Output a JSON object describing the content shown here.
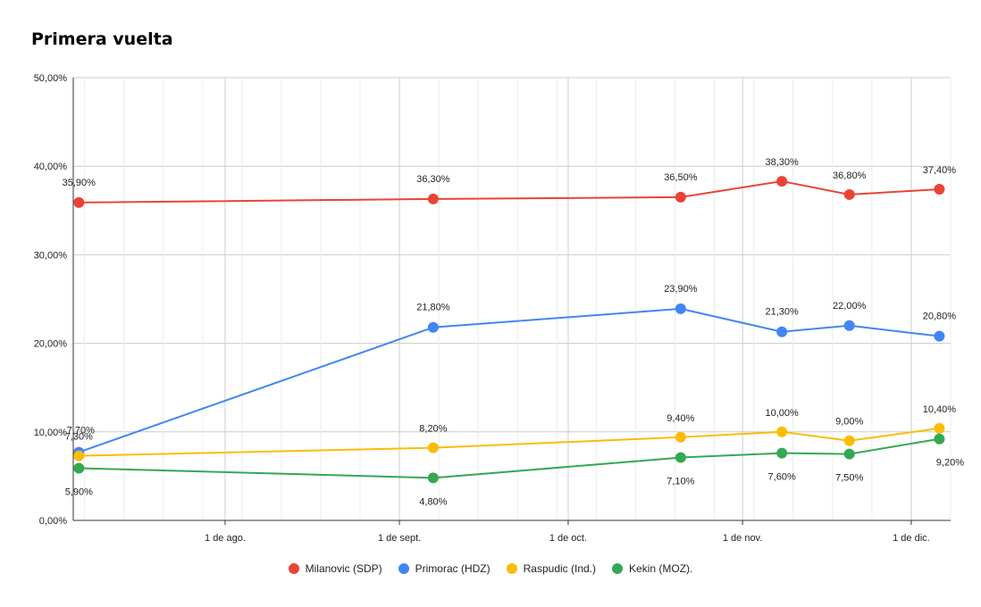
{
  "chart_data": {
    "type": "line",
    "title": "Primera vuelta",
    "xlabel": "",
    "ylabel": "",
    "ylim": [
      0,
      50
    ],
    "y_ticks": [
      "0,00%",
      "10,00%",
      "20,00%",
      "30,00%",
      "40,00%",
      "50,00%"
    ],
    "x_ticks": [
      {
        "date": "2024-08-01",
        "label": "1 de ago."
      },
      {
        "date": "2024-09-01",
        "label": "1 de sept."
      },
      {
        "date": "2024-10-01",
        "label": "1 de oct."
      },
      {
        "date": "2024-11-01",
        "label": "1 de nov."
      },
      {
        "date": "2024-12-01",
        "label": "1 de dic."
      }
    ],
    "xlim": [
      "2024-07-05",
      "2024-12-08"
    ],
    "x": [
      "2024-07-06",
      "2024-09-07",
      "2024-10-21",
      "2024-11-08",
      "2024-11-20",
      "2024-12-06"
    ],
    "grid": true,
    "legend_position": "bottom",
    "series": [
      {
        "name": "Milanovic (SDP)",
        "color": "#ea4335",
        "values": [
          35.9,
          36.3,
          36.5,
          38.3,
          36.8,
          37.4
        ],
        "labels": [
          "35,90%",
          "36,30%",
          "36,50%",
          "38,30%",
          "36,80%",
          "37,40%"
        ]
      },
      {
        "name": "Primorac (HDZ)",
        "color": "#4285f4",
        "values": [
          7.7,
          21.8,
          23.9,
          21.3,
          22.0,
          20.8
        ],
        "labels": [
          "7,70%",
          "21,80%",
          "23,90%",
          "21,30%",
          "22,00%",
          "20,80%"
        ]
      },
      {
        "name": "Raspudic (Ind.)",
        "color": "#fbbc04",
        "values": [
          7.3,
          8.2,
          9.4,
          10.0,
          9.0,
          10.4
        ],
        "labels": [
          "7,30%",
          "8,20%",
          "9,40%",
          "10,00%",
          "9,00%",
          "10,40%"
        ]
      },
      {
        "name": "Kekin (MOZ).",
        "color": "#34a853",
        "values": [
          5.9,
          4.8,
          7.1,
          7.6,
          7.5,
          9.2
        ],
        "labels": [
          "5,90%",
          "4,80%",
          "7,10%",
          "7,60%",
          "7,50%",
          "9,20%"
        ]
      }
    ]
  }
}
